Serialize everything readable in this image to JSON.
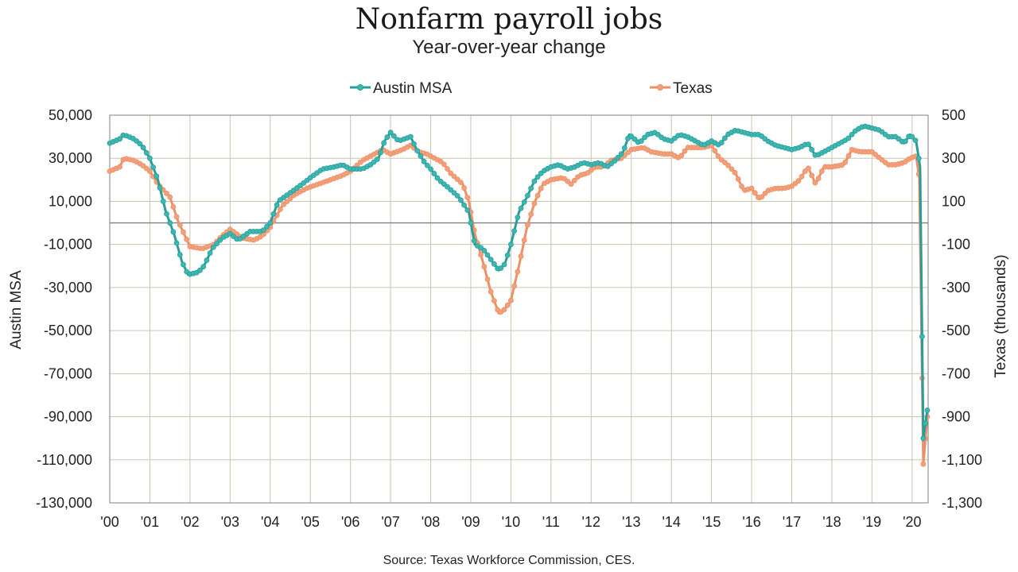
{
  "chart_data": {
    "type": "line",
    "title": "Nonfarm payroll jobs",
    "subtitle": "Year-over-year change",
    "source": "Source: Texas Workforce Commission, CES.",
    "ylabel_left": "Austin MSA",
    "ylabel_right": "Texas (thousands)",
    "legend_position": "top-center",
    "grid": true,
    "x_ticks": [
      "'00",
      "'01",
      "'02",
      "'03",
      "'04",
      "'05",
      "'06",
      "'07",
      "'08",
      "'09",
      "'10",
      "'11",
      "'12",
      "'13",
      "'14",
      "'15",
      "'16",
      "'17",
      "'18",
      "'19",
      "'20"
    ],
    "y_left_ticks": [
      "50,000",
      "30,000",
      "10,000",
      "-10,000",
      "-30,000",
      "-50,000",
      "-70,000",
      "-90,000",
      "-110,000",
      "-130,000"
    ],
    "y_right_ticks": [
      "500",
      "300",
      "100",
      "-100",
      "-300",
      "-500",
      "-700",
      "-900",
      "-1,100",
      "-1,300"
    ],
    "ylim_left": [
      -130000,
      50000
    ],
    "ylim_right": [
      -1300,
      500
    ],
    "x_range": [
      2000.0,
      2020.4
    ],
    "series": [
      {
        "name": "Austin MSA",
        "axis": "left",
        "color": "#2a9d99",
        "marker_color": "#3cb8b2",
        "points": [
          [
            2000.0,
            37000
          ],
          [
            2000.25,
            39000
          ],
          [
            2000.35,
            41000
          ],
          [
            2000.6,
            39000
          ],
          [
            2000.8,
            36000
          ],
          [
            2001.0,
            30000
          ],
          [
            2001.2,
            20000
          ],
          [
            2001.4,
            5000
          ],
          [
            2001.6,
            -5000
          ],
          [
            2001.8,
            -18000
          ],
          [
            2001.95,
            -24000
          ],
          [
            2002.2,
            -23000
          ],
          [
            2002.35,
            -20000
          ],
          [
            2002.55,
            -12000
          ],
          [
            2002.8,
            -7000
          ],
          [
            2003.0,
            -5000
          ],
          [
            2003.2,
            -8000
          ],
          [
            2003.5,
            -4000
          ],
          [
            2003.8,
            -4000
          ],
          [
            2004.0,
            0
          ],
          [
            2004.2,
            10000
          ],
          [
            2004.5,
            14000
          ],
          [
            2004.8,
            18000
          ],
          [
            2005.0,
            21000
          ],
          [
            2005.3,
            25000
          ],
          [
            2005.6,
            26000
          ],
          [
            2005.8,
            27000
          ],
          [
            2006.0,
            25000
          ],
          [
            2006.3,
            25000
          ],
          [
            2006.5,
            27000
          ],
          [
            2006.7,
            30000
          ],
          [
            2006.85,
            38000
          ],
          [
            2007.0,
            42000
          ],
          [
            2007.2,
            38000
          ],
          [
            2007.5,
            40000
          ],
          [
            2007.65,
            34000
          ],
          [
            2007.85,
            28000
          ],
          [
            2008.0,
            25000
          ],
          [
            2008.2,
            20000
          ],
          [
            2008.4,
            17000
          ],
          [
            2008.7,
            12000
          ],
          [
            2008.95,
            5000
          ],
          [
            2009.1,
            -10000
          ],
          [
            2009.3,
            -12000
          ],
          [
            2009.5,
            -17000
          ],
          [
            2009.7,
            -22000
          ],
          [
            2009.85,
            -19000
          ],
          [
            2010.0,
            -10000
          ],
          [
            2010.2,
            5000
          ],
          [
            2010.4,
            12000
          ],
          [
            2010.6,
            20000
          ],
          [
            2010.8,
            24000
          ],
          [
            2011.0,
            26000
          ],
          [
            2011.2,
            27000
          ],
          [
            2011.4,
            25000
          ],
          [
            2011.6,
            26000
          ],
          [
            2011.8,
            28000
          ],
          [
            2012.0,
            27000
          ],
          [
            2012.2,
            28000
          ],
          [
            2012.4,
            26000
          ],
          [
            2012.6,
            29000
          ],
          [
            2012.8,
            33000
          ],
          [
            2012.95,
            41000
          ],
          [
            2013.2,
            37000
          ],
          [
            2013.4,
            41000
          ],
          [
            2013.6,
            42000
          ],
          [
            2013.8,
            39000
          ],
          [
            2014.0,
            38000
          ],
          [
            2014.2,
            41000
          ],
          [
            2014.4,
            40000
          ],
          [
            2014.6,
            38000
          ],
          [
            2014.8,
            36000
          ],
          [
            2015.0,
            38000
          ],
          [
            2015.2,
            36000
          ],
          [
            2015.4,
            41000
          ],
          [
            2015.6,
            43000
          ],
          [
            2015.8,
            42000
          ],
          [
            2016.0,
            41000
          ],
          [
            2016.2,
            41000
          ],
          [
            2016.4,
            38000
          ],
          [
            2016.6,
            36000
          ],
          [
            2016.8,
            35000
          ],
          [
            2017.0,
            34000
          ],
          [
            2017.2,
            35000
          ],
          [
            2017.4,
            37000
          ],
          [
            2017.6,
            31000
          ],
          [
            2017.8,
            33000
          ],
          [
            2018.0,
            35000
          ],
          [
            2018.2,
            37000
          ],
          [
            2018.4,
            39000
          ],
          [
            2018.6,
            43000
          ],
          [
            2018.8,
            45000
          ],
          [
            2019.0,
            44000
          ],
          [
            2019.2,
            43000
          ],
          [
            2019.4,
            40000
          ],
          [
            2019.6,
            40000
          ],
          [
            2019.8,
            37000
          ],
          [
            2019.95,
            41000
          ],
          [
            2020.1,
            38000
          ],
          [
            2020.2,
            26000
          ],
          [
            2020.28,
            -100000
          ],
          [
            2020.38,
            -87000
          ]
        ]
      },
      {
        "name": "Texas",
        "axis": "right",
        "color": "#ee8f65",
        "marker_color": "#f2a07a",
        "points": [
          [
            2000.0,
            240
          ],
          [
            2000.25,
            260
          ],
          [
            2000.35,
            300
          ],
          [
            2000.6,
            290
          ],
          [
            2000.8,
            270
          ],
          [
            2001.0,
            240
          ],
          [
            2001.2,
            180
          ],
          [
            2001.5,
            120
          ],
          [
            2001.7,
            10
          ],
          [
            2001.85,
            -50
          ],
          [
            2002.0,
            -110
          ],
          [
            2002.3,
            -120
          ],
          [
            2002.6,
            -100
          ],
          [
            2002.8,
            -60
          ],
          [
            2003.0,
            -30
          ],
          [
            2003.3,
            -70
          ],
          [
            2003.6,
            -80
          ],
          [
            2003.8,
            -60
          ],
          [
            2004.0,
            -20
          ],
          [
            2004.3,
            80
          ],
          [
            2004.6,
            130
          ],
          [
            2004.9,
            160
          ],
          [
            2005.2,
            180
          ],
          [
            2005.5,
            200
          ],
          [
            2005.8,
            220
          ],
          [
            2006.0,
            240
          ],
          [
            2006.3,
            290
          ],
          [
            2006.6,
            320
          ],
          [
            2006.8,
            340
          ],
          [
            2007.0,
            320
          ],
          [
            2007.3,
            340
          ],
          [
            2007.5,
            360
          ],
          [
            2007.7,
            330
          ],
          [
            2007.9,
            320
          ],
          [
            2008.0,
            310
          ],
          [
            2008.3,
            280
          ],
          [
            2008.5,
            230
          ],
          [
            2008.8,
            180
          ],
          [
            2008.95,
            100
          ],
          [
            2009.1,
            -50
          ],
          [
            2009.3,
            -180
          ],
          [
            2009.5,
            -320
          ],
          [
            2009.7,
            -420
          ],
          [
            2009.85,
            -400
          ],
          [
            2010.0,
            -360
          ],
          [
            2010.2,
            -200
          ],
          [
            2010.4,
            -20
          ],
          [
            2010.6,
            100
          ],
          [
            2010.8,
            180
          ],
          [
            2011.0,
            200
          ],
          [
            2011.3,
            210
          ],
          [
            2011.5,
            180
          ],
          [
            2011.7,
            220
          ],
          [
            2011.9,
            230
          ],
          [
            2012.1,
            260
          ],
          [
            2012.3,
            260
          ],
          [
            2012.5,
            290
          ],
          [
            2012.75,
            300
          ],
          [
            2013.0,
            340
          ],
          [
            2013.3,
            350
          ],
          [
            2013.5,
            330
          ],
          [
            2013.8,
            320
          ],
          [
            2014.0,
            320
          ],
          [
            2014.2,
            300
          ],
          [
            2014.4,
            350
          ],
          [
            2014.6,
            350
          ],
          [
            2014.8,
            350
          ],
          [
            2015.0,
            360
          ],
          [
            2015.2,
            300
          ],
          [
            2015.4,
            270
          ],
          [
            2015.6,
            230
          ],
          [
            2015.8,
            150
          ],
          [
            2016.0,
            160
          ],
          [
            2016.2,
            110
          ],
          [
            2016.4,
            150
          ],
          [
            2016.6,
            160
          ],
          [
            2016.8,
            160
          ],
          [
            2017.0,
            170
          ],
          [
            2017.2,
            200
          ],
          [
            2017.4,
            260
          ],
          [
            2017.6,
            180
          ],
          [
            2017.8,
            260
          ],
          [
            2018.0,
            260
          ],
          [
            2018.3,
            270
          ],
          [
            2018.5,
            340
          ],
          [
            2018.7,
            330
          ],
          [
            2019.0,
            330
          ],
          [
            2019.2,
            300
          ],
          [
            2019.4,
            270
          ],
          [
            2019.6,
            270
          ],
          [
            2019.8,
            280
          ],
          [
            2019.95,
            300
          ],
          [
            2020.1,
            310
          ],
          [
            2020.18,
            210
          ],
          [
            2020.28,
            -1120
          ],
          [
            2020.38,
            -900
          ]
        ]
      }
    ]
  }
}
